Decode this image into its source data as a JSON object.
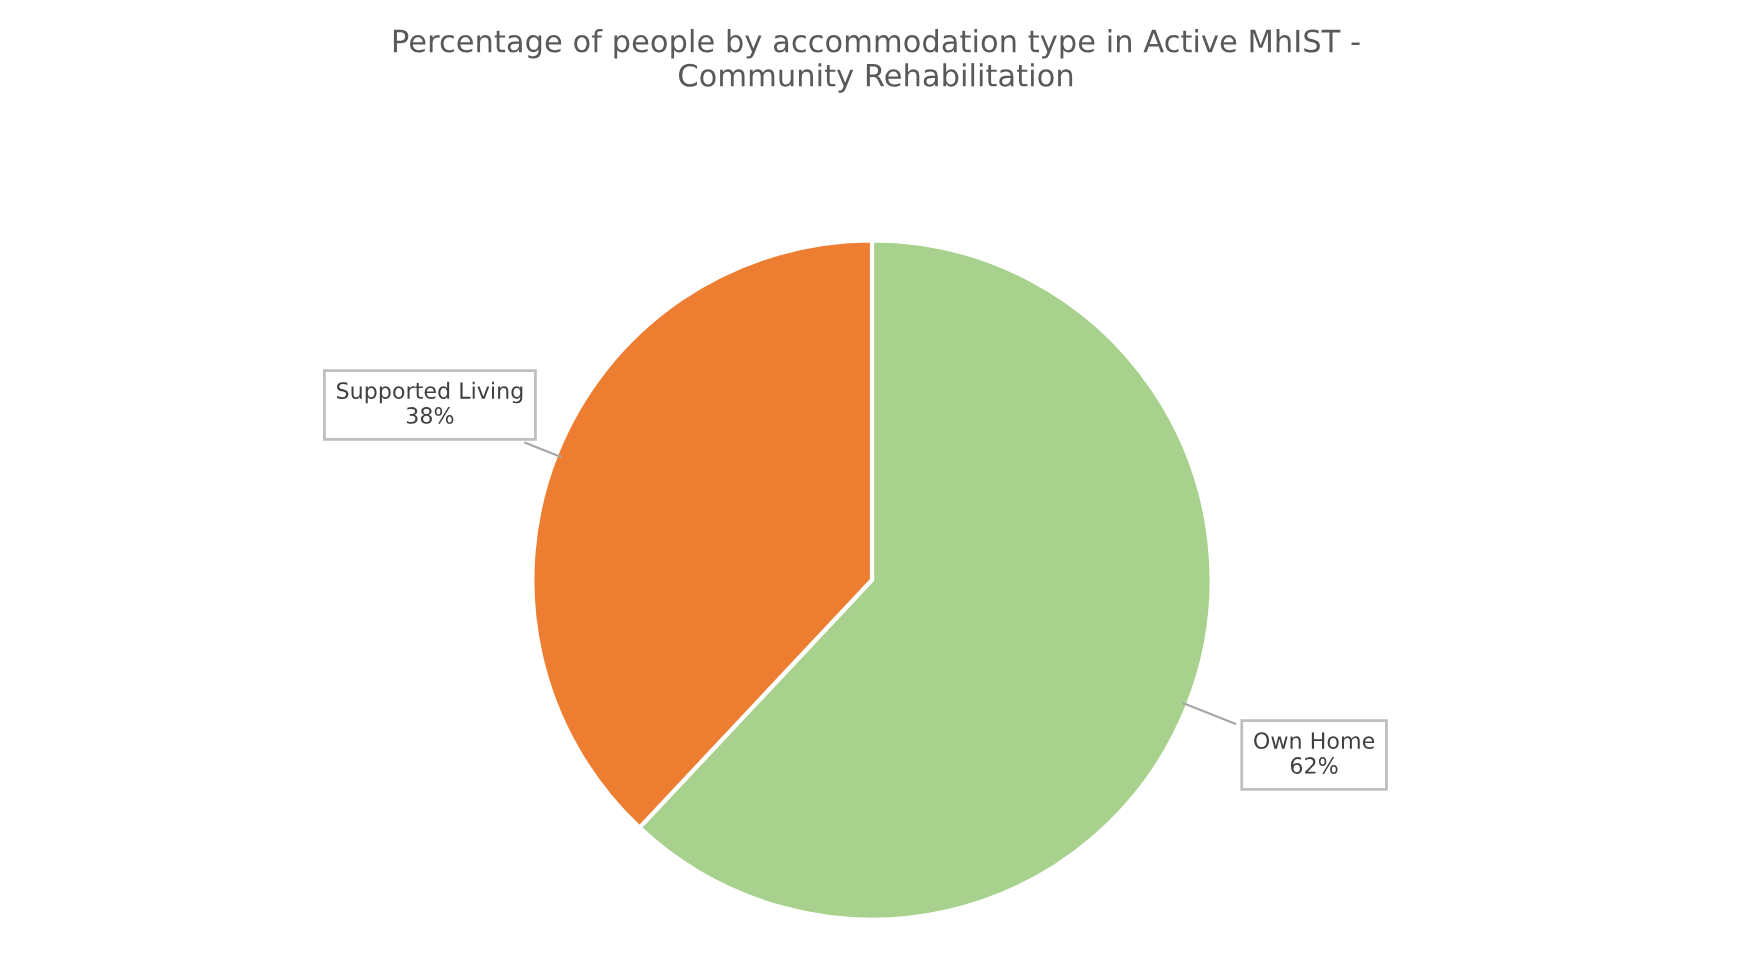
{
  "chart_data": {
    "type": "pie",
    "title": "Percentage of people by accommodation type in Active MhIST -\nCommunity Rehabilitation",
    "categories": [
      "Own Home",
      "Supported Living"
    ],
    "values": [
      62,
      38
    ],
    "colors": [
      "#a9d18e",
      "#ed7d31"
    ],
    "value_labels": [
      "62%",
      "38%"
    ],
    "legend": false
  }
}
